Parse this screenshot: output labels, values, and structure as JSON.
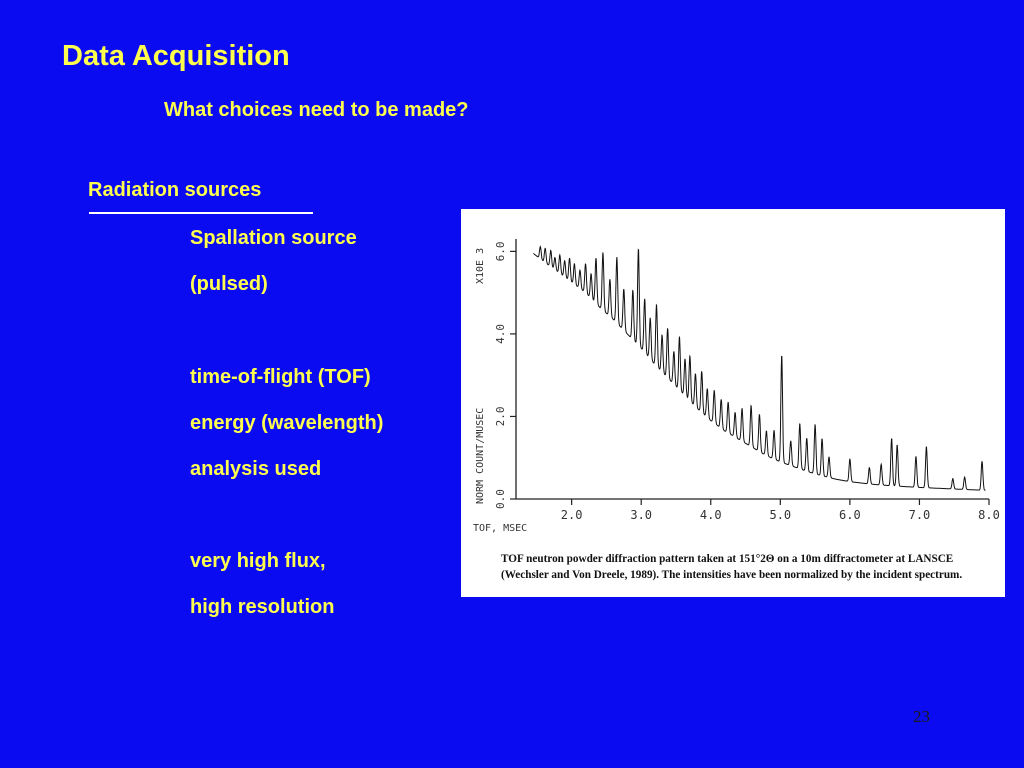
{
  "slide": {
    "title": "Data Acquisition",
    "subtitle": "What choices need to be made?",
    "section_heading": "Radiation sources",
    "lines": [
      "Spallation source",
      "(pulsed)",
      "time-of-flight (TOF)",
      "energy (wavelength)",
      "analysis used",
      "very high flux,",
      "high resolution"
    ],
    "page_number": "23",
    "colors": {
      "background": "#0b0bf2",
      "text": "#ffff4d"
    }
  },
  "figure": {
    "caption_lines": [
      "TOF neutron powder diffraction pattern taken at 151°2Θ on a 10m diffractometer at LANSCE",
      "(Wechsler and Von Dreele, 1989).  The intensities have been normalized by the incident spectrum."
    ]
  },
  "chart_data": {
    "type": "line",
    "xlabel": "TOF,  MSEC",
    "ylabel": "NORM  COUNT/MUSEC",
    "y_multiplier_label": "X10E  3",
    "xlim": [
      1.2,
      8.0
    ],
    "ylim": [
      0.0,
      6.3
    ],
    "x_ticks": [
      2.0,
      3.0,
      4.0,
      5.0,
      6.0,
      7.0,
      8.0
    ],
    "x_tick_labels": [
      "2.0",
      "3.0",
      "4.0",
      "5.0",
      "6.0",
      "7.0",
      "8.0"
    ],
    "y_ticks": [
      0.0,
      2.0,
      4.0,
      6.0
    ],
    "y_tick_labels": [
      "0.0",
      "2.0",
      "4.0",
      "6.0"
    ],
    "background_curve": [
      [
        1.45,
        5.95
      ],
      [
        1.6,
        5.75
      ],
      [
        1.8,
        5.5
      ],
      [
        2.0,
        5.25
      ],
      [
        2.2,
        5.0
      ],
      [
        2.4,
        4.65
      ],
      [
        2.6,
        4.35
      ],
      [
        2.8,
        4.0
      ],
      [
        3.0,
        3.65
      ],
      [
        3.2,
        3.25
      ],
      [
        3.4,
        2.9
      ],
      [
        3.6,
        2.55
      ],
      [
        3.8,
        2.2
      ],
      [
        4.0,
        1.9
      ],
      [
        4.2,
        1.65
      ],
      [
        4.4,
        1.45
      ],
      [
        4.6,
        1.25
      ],
      [
        4.8,
        1.05
      ],
      [
        5.0,
        0.9
      ],
      [
        5.2,
        0.78
      ],
      [
        5.4,
        0.66
      ],
      [
        5.6,
        0.56
      ],
      [
        5.8,
        0.48
      ],
      [
        6.0,
        0.42
      ],
      [
        6.3,
        0.36
      ],
      [
        6.6,
        0.32
      ],
      [
        7.0,
        0.28
      ],
      [
        7.4,
        0.25
      ],
      [
        7.8,
        0.22
      ],
      [
        7.95,
        0.21
      ]
    ],
    "peaks": [
      {
        "x": 1.55,
        "height": 0.3
      },
      {
        "x": 1.62,
        "height": 0.35
      },
      {
        "x": 1.7,
        "height": 0.4
      },
      {
        "x": 1.76,
        "height": 0.3
      },
      {
        "x": 1.83,
        "height": 0.45
      },
      {
        "x": 1.9,
        "height": 0.4
      },
      {
        "x": 1.97,
        "height": 0.55
      },
      {
        "x": 2.04,
        "height": 0.5
      },
      {
        "x": 2.12,
        "height": 0.45
      },
      {
        "x": 2.2,
        "height": 0.7
      },
      {
        "x": 2.28,
        "height": 0.6
      },
      {
        "x": 2.35,
        "height": 1.1
      },
      {
        "x": 2.45,
        "height": 1.4
      },
      {
        "x": 2.55,
        "height": 0.9
      },
      {
        "x": 2.65,
        "height": 1.6
      },
      {
        "x": 2.75,
        "height": 1.0
      },
      {
        "x": 2.88,
        "height": 1.2
      },
      {
        "x": 2.96,
        "height": 2.35
      },
      {
        "x": 3.05,
        "height": 1.3
      },
      {
        "x": 3.13,
        "height": 1.0
      },
      {
        "x": 3.22,
        "height": 1.5
      },
      {
        "x": 3.3,
        "height": 0.9
      },
      {
        "x": 3.38,
        "height": 1.2
      },
      {
        "x": 3.47,
        "height": 0.8
      },
      {
        "x": 3.55,
        "height": 1.3
      },
      {
        "x": 3.63,
        "height": 0.9
      },
      {
        "x": 3.7,
        "height": 1.1
      },
      {
        "x": 3.78,
        "height": 0.8
      },
      {
        "x": 3.87,
        "height": 1.0
      },
      {
        "x": 3.95,
        "height": 0.7
      },
      {
        "x": 4.05,
        "height": 0.8
      },
      {
        "x": 4.15,
        "height": 0.7
      },
      {
        "x": 4.25,
        "height": 0.75
      },
      {
        "x": 4.35,
        "height": 0.6
      },
      {
        "x": 4.45,
        "height": 0.8
      },
      {
        "x": 4.58,
        "height": 1.0
      },
      {
        "x": 4.7,
        "height": 0.9
      },
      {
        "x": 4.8,
        "height": 0.6
      },
      {
        "x": 4.91,
        "height": 0.7
      },
      {
        "x": 5.02,
        "height": 2.6
      },
      {
        "x": 5.15,
        "height": 0.6
      },
      {
        "x": 5.28,
        "height": 1.1
      },
      {
        "x": 5.38,
        "height": 0.8
      },
      {
        "x": 5.5,
        "height": 1.2
      },
      {
        "x": 5.6,
        "height": 0.9
      },
      {
        "x": 5.7,
        "height": 0.5
      },
      {
        "x": 6.0,
        "height": 0.55
      },
      {
        "x": 6.28,
        "height": 0.4
      },
      {
        "x": 6.45,
        "height": 0.5
      },
      {
        "x": 6.6,
        "height": 1.15
      },
      {
        "x": 6.68,
        "height": 1.0
      },
      {
        "x": 6.95,
        "height": 0.75
      },
      {
        "x": 7.1,
        "height": 1.0
      },
      {
        "x": 7.48,
        "height": 0.25
      },
      {
        "x": 7.65,
        "height": 0.3
      },
      {
        "x": 7.9,
        "height": 0.7
      }
    ]
  }
}
